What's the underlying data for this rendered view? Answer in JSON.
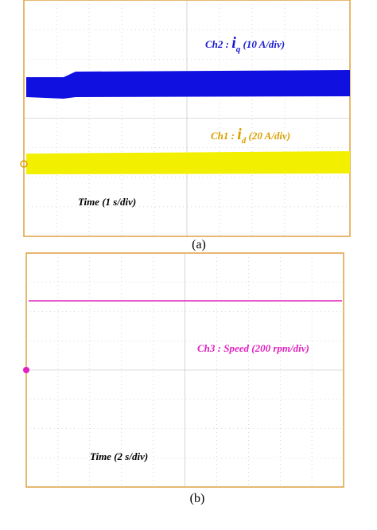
{
  "panels": [
    {
      "caption": "(a)",
      "channels": [
        {
          "name": "Ch2 :",
          "symbol": "i",
          "subscript": "q",
          "scale": "(10 A/div)"
        },
        {
          "name": "Ch1 :",
          "symbol": "i",
          "subscript": "d",
          "scale": "(20 A/div)"
        }
      ],
      "time": "Time (1 s/div)"
    },
    {
      "caption": "(b)",
      "channels": [
        {
          "name": "Ch3 : Speed",
          "scale": "(200 rpm/div)"
        }
      ],
      "time": "Time (2 s/div)"
    }
  ]
}
